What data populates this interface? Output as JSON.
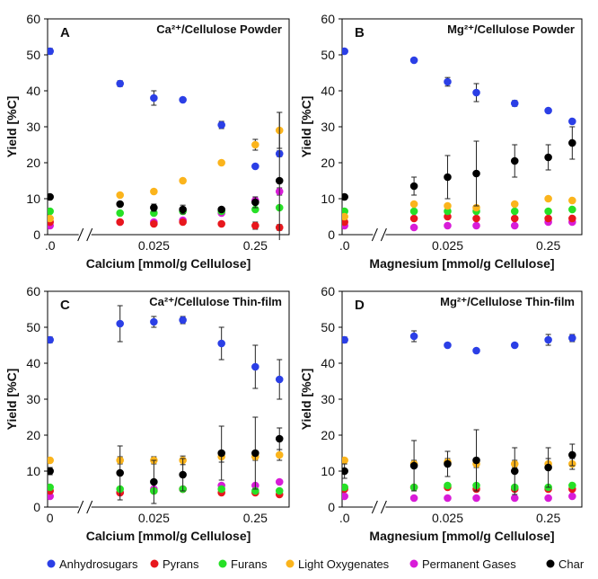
{
  "legend": [
    {
      "name": "Anhydrosugars",
      "color": "#2b3fe6"
    },
    {
      "name": "Pyrans",
      "color": "#e8171d"
    },
    {
      "name": "Furans",
      "color": "#26e026"
    },
    {
      "name": "Light Oxygenates",
      "color": "#fbb41c"
    },
    {
      "name": "Permanent Gases",
      "color": "#d81cd8"
    },
    {
      "name": "Char",
      "color": "#000000"
    }
  ],
  "chart_data": [
    {
      "type": "scatter",
      "panel": "A",
      "title": "Ca²⁺/Cellulose Powder",
      "xlabel": "Calcium [mmol/g Cellulose]",
      "ylabel": "Yield [%C]",
      "ylim": [
        0,
        60
      ],
      "yticks": [
        0,
        10,
        20,
        30,
        40,
        50,
        60
      ],
      "x": [
        "0",
        "s1",
        "0.025",
        "s3",
        "s4",
        "0.25",
        "s6"
      ],
      "xtick_labels": [
        ".0",
        "",
        "0.025",
        "",
        "",
        "0.25",
        ""
      ],
      "axis_break": true,
      "series": [
        {
          "name": "Anhydrosugars",
          "values": [
            51,
            42,
            38,
            37.5,
            30.5,
            19,
            22.5
          ],
          "errors": [
            0.8,
            0.8,
            2,
            0.5,
            1,
            0.5,
            0.8
          ]
        },
        {
          "name": "Pyrans",
          "values": [
            3.5,
            3.5,
            3,
            3.5,
            3,
            2.5,
            2
          ],
          "errors": [
            0.3,
            0.3,
            0.3,
            0.3,
            0.3,
            1,
            0.8
          ]
        },
        {
          "name": "Furans",
          "values": [
            6.5,
            6,
            6,
            6.5,
            6.5,
            7,
            7.5
          ],
          "errors": [
            0.3,
            0.3,
            0.3,
            0.3,
            0.3,
            0.3,
            0.5
          ]
        },
        {
          "name": "Light Oxygenates",
          "values": [
            4.5,
            11,
            12,
            15,
            20,
            25,
            29
          ],
          "errors": [
            0.3,
            0.5,
            0.5,
            0.3,
            0.3,
            1.5,
            5
          ]
        },
        {
          "name": "Permanent Gases",
          "values": [
            2.5,
            3.5,
            3.5,
            4,
            6,
            9.5,
            12
          ],
          "errors": [
            0.3,
            0.3,
            0.3,
            0.3,
            0.3,
            0.5,
            1
          ]
        },
        {
          "name": "Char",
          "values": [
            10.5,
            8.5,
            7.5,
            7,
            7,
            9,
            15
          ],
          "errors": [
            0.5,
            0.5,
            1,
            1.2,
            0.5,
            1.5,
            19
          ]
        }
      ]
    },
    {
      "type": "scatter",
      "panel": "B",
      "title": "Mg²⁺/Cellulose Powder",
      "xlabel": "Magnesium [mmol/g Cellulose]",
      "ylabel": "Yield [%C]",
      "ylim": [
        0,
        60
      ],
      "yticks": [
        0,
        10,
        20,
        30,
        40,
        50,
        60
      ],
      "x": [
        "0",
        "s1",
        "0.025",
        "s3",
        "s4",
        "0.25",
        "s6"
      ],
      "xtick_labels": [
        ".0",
        "",
        "0.025",
        "",
        "",
        "0.25",
        ""
      ],
      "axis_break": true,
      "series": [
        {
          "name": "Anhydrosugars",
          "values": [
            51,
            48.5,
            42.5,
            39.5,
            36.5,
            34.5,
            31.5
          ],
          "errors": [
            0.5,
            0.5,
            1.2,
            2.5,
            0.8,
            0.4,
            0.5
          ]
        },
        {
          "name": "Pyrans",
          "values": [
            3.5,
            4.5,
            5,
            4.5,
            4.5,
            4.5,
            4.5
          ],
          "errors": [
            0.3,
            0.3,
            0.3,
            0.3,
            0.3,
            0.3,
            0.3
          ]
        },
        {
          "name": "Furans",
          "values": [
            6.5,
            6.5,
            6.5,
            6.5,
            6.5,
            6.5,
            7
          ],
          "errors": [
            0.3,
            0.3,
            0.3,
            0.3,
            0.3,
            0.3,
            0.3
          ]
        },
        {
          "name": "Light Oxygenates",
          "values": [
            5,
            8.5,
            8,
            7.5,
            8.5,
            10,
            9.5
          ],
          "errors": [
            0.3,
            0.5,
            0.5,
            0.5,
            0.5,
            0.5,
            0.5
          ]
        },
        {
          "name": "Permanent Gases",
          "values": [
            2.5,
            2,
            2.5,
            2.5,
            2.5,
            3.5,
            3.5
          ],
          "errors": [
            0.3,
            0.3,
            0.3,
            0.3,
            0.3,
            0.3,
            0.3
          ]
        },
        {
          "name": "Char",
          "values": [
            10.5,
            13.5,
            16,
            17,
            20.5,
            21.5,
            25.5
          ],
          "errors": [
            0.5,
            2.5,
            6,
            9,
            4.5,
            3.5,
            4.5
          ]
        }
      ]
    },
    {
      "type": "scatter",
      "panel": "C",
      "title": "Ca²⁺/Cellulose Thin-film",
      "xlabel": "Calcium [mmol/g Cellulose]",
      "ylabel": "Yield [%C]",
      "ylim": [
        0,
        60
      ],
      "yticks": [
        0,
        10,
        20,
        30,
        40,
        50,
        60
      ],
      "x": [
        "0",
        "s1",
        "0.025",
        "s3",
        "s4",
        "0.25",
        "s6"
      ],
      "xtick_labels": [
        "0",
        "",
        "0.025",
        "",
        "",
        "0.25",
        ""
      ],
      "axis_break": true,
      "series": [
        {
          "name": "Anhydrosugars",
          "values": [
            46.5,
            51,
            51.5,
            52,
            45.5,
            39,
            35.5
          ],
          "errors": [
            0.8,
            5,
            1.5,
            1,
            4.5,
            6,
            5.5
          ]
        },
        {
          "name": "Pyrans",
          "values": [
            4.5,
            4,
            4.5,
            5,
            4,
            4,
            3.5
          ],
          "errors": [
            0.3,
            0.3,
            0.3,
            0.3,
            0.3,
            0.3,
            0.3
          ]
        },
        {
          "name": "Furans",
          "values": [
            5.5,
            5,
            4.5,
            5,
            5,
            4.5,
            4.5
          ],
          "errors": [
            0.3,
            0.3,
            0.3,
            0.3,
            0.3,
            0.3,
            0.3
          ]
        },
        {
          "name": "Light Oxygenates",
          "values": [
            13,
            13,
            13,
            13,
            14,
            14,
            14.5
          ],
          "errors": [
            0.5,
            1,
            1,
            1.2,
            1.5,
            1,
            1.5
          ]
        },
        {
          "name": "Permanent Gases",
          "values": [
            3,
            4,
            5,
            5,
            6,
            6,
            7
          ],
          "errors": [
            0.3,
            0.3,
            0.3,
            0.3,
            0.5,
            0.3,
            0.3
          ]
        },
        {
          "name": "Char",
          "values": [
            10,
            9.5,
            7,
            9,
            15,
            15,
            19
          ],
          "errors": [
            1,
            7.5,
            6,
            4.5,
            7.5,
            10,
            3
          ]
        }
      ]
    },
    {
      "type": "scatter",
      "panel": "D",
      "title": "Mg²⁺/Cellulose Thin-film",
      "xlabel": "Magnesium [mmol/g Cellulose]",
      "ylabel": "Yield [%C]",
      "ylim": [
        0,
        60
      ],
      "yticks": [
        0,
        10,
        20,
        30,
        40,
        50,
        60
      ],
      "x": [
        "0",
        "s1",
        "0.025",
        "s3",
        "s4",
        "0.25",
        "s6"
      ],
      "xtick_labels": [
        ".0",
        "",
        "0.025",
        "",
        "",
        "0.25",
        ""
      ],
      "axis_break": true,
      "series": [
        {
          "name": "Anhydrosugars",
          "values": [
            46.5,
            47.5,
            45,
            43.5,
            45,
            46.5,
            47
          ],
          "errors": [
            0.8,
            1.5,
            0.5,
            0.5,
            0.5,
            1.5,
            1
          ]
        },
        {
          "name": "Pyrans",
          "values": [
            5,
            5.5,
            5.5,
            5,
            5,
            5,
            5
          ],
          "errors": [
            0.3,
            0.3,
            0.3,
            0.3,
            0.3,
            0.3,
            0.3
          ]
        },
        {
          "name": "Furans",
          "values": [
            5.5,
            5.5,
            6,
            6,
            5.5,
            5.5,
            6
          ],
          "errors": [
            0.3,
            0.3,
            0.3,
            0.3,
            0.3,
            0.3,
            0.3
          ]
        },
        {
          "name": "Light Oxygenates",
          "values": [
            13,
            12,
            12.5,
            12,
            12,
            12,
            12
          ],
          "errors": [
            0.5,
            1,
            1,
            1,
            1,
            1.5,
            1.5
          ]
        },
        {
          "name": "Permanent Gases",
          "values": [
            3,
            2.5,
            2.5,
            2.5,
            2.5,
            2.5,
            3
          ],
          "errors": [
            0.3,
            0.3,
            0.3,
            0.3,
            0.3,
            0.3,
            0.3
          ]
        },
        {
          "name": "Char",
          "values": [
            10,
            11.5,
            12,
            13,
            10,
            11,
            14.5
          ],
          "errors": [
            2,
            7,
            3.5,
            8.5,
            6.5,
            5.5,
            3
          ]
        }
      ]
    }
  ]
}
